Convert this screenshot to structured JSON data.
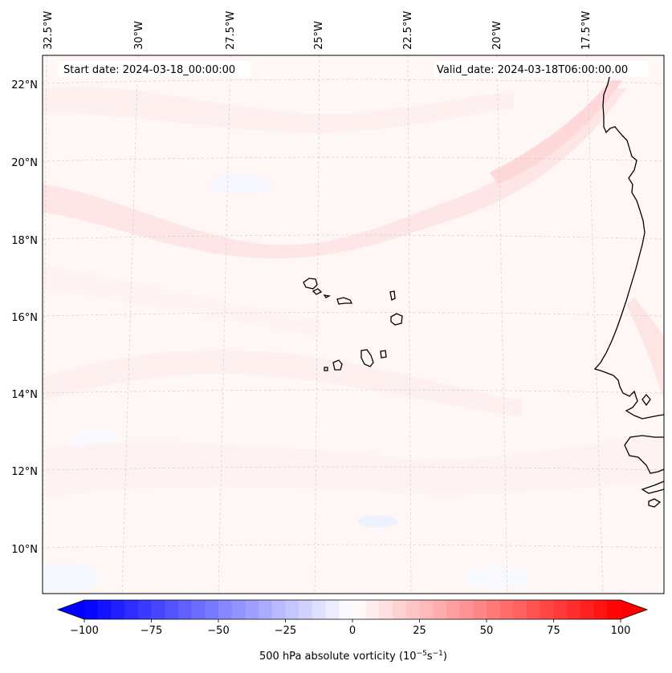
{
  "map": {
    "start_date": "Start date: 2024-03-18_00:00:00",
    "valid_date": "Valid_date: 2024-03-18T06:00:00.00",
    "lon_labels": [
      "32.5°W",
      "30°W",
      "27.5°W",
      "25°W",
      "22.5°W",
      "20°W",
      "17.5°W"
    ],
    "lat_labels": [
      "22°N",
      "20°N",
      "18°N",
      "16°N",
      "14°N",
      "12°N",
      "10°N"
    ],
    "coastline_color": "#000000",
    "gridline_color": "#c8c8c8"
  },
  "colorbar": {
    "label": "500 hPa absolute vorticity (10",
    "label_exp1": "−5",
    "label_mid": "s",
    "label_exp2": "−1",
    "label_end": ")",
    "ticks": [
      "−100",
      "−75",
      "−50",
      "−25",
      "0",
      "25",
      "50",
      "75",
      "100"
    ],
    "tick_values": [
      -100,
      -75,
      -50,
      -25,
      0,
      25,
      50,
      75,
      100
    ],
    "vmin": -100,
    "vmax": 100,
    "step": 5,
    "cmap": "bwr",
    "low_color": "#0000ff",
    "mid_color": "#ffffff",
    "high_color": "#ff0000"
  }
}
